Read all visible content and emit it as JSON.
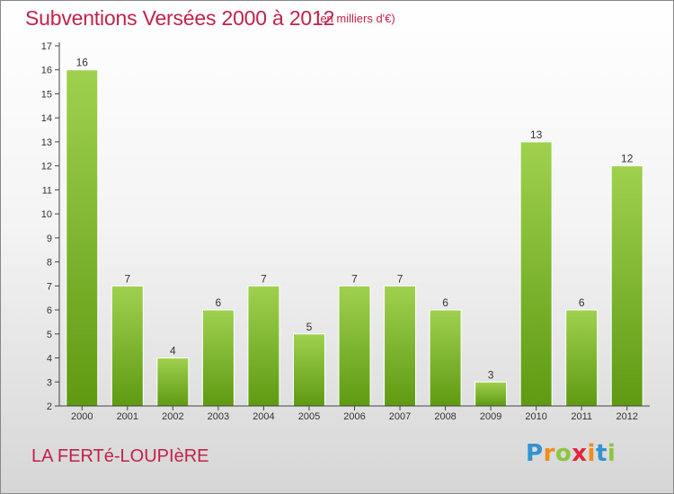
{
  "header": {
    "title": "Subventions Versées 2000 à 2012",
    "unit": "(en milliers d'€)"
  },
  "footer": {
    "commune": "LA FERTé-LOUPIèRE",
    "logo_letters": [
      "P",
      "r",
      "o",
      "x",
      "i",
      "t",
      "i"
    ],
    "logo_colors": [
      "#2f93d0",
      "#f08b1d",
      "#8cc63f",
      "#e5243b",
      "#f08b1d",
      "#2f93d0",
      "#8cc63f"
    ]
  },
  "chart_data": {
    "type": "bar",
    "title": "Subventions Versées 2000 à 2012",
    "subtitle": "(en milliers d'€)",
    "xlabel": "",
    "ylabel": "",
    "categories": [
      "2000",
      "2001",
      "2002",
      "2003",
      "2004",
      "2005",
      "2006",
      "2007",
      "2008",
      "2009",
      "2010",
      "2011",
      "2012"
    ],
    "values": [
      16,
      7,
      4,
      6,
      7,
      5,
      7,
      7,
      6,
      3,
      13,
      6,
      12
    ],
    "ylim": [
      2,
      17
    ],
    "yticks": [
      2,
      3,
      4,
      5,
      6,
      7,
      8,
      9,
      10,
      11,
      12,
      13,
      14,
      15,
      16,
      17
    ],
    "grid": false,
    "legend": "none",
    "bar_color_top": "#9fd14f",
    "bar_color_bottom": "#5f9a12",
    "axis_color": "#444444",
    "label_color": "#333333"
  }
}
